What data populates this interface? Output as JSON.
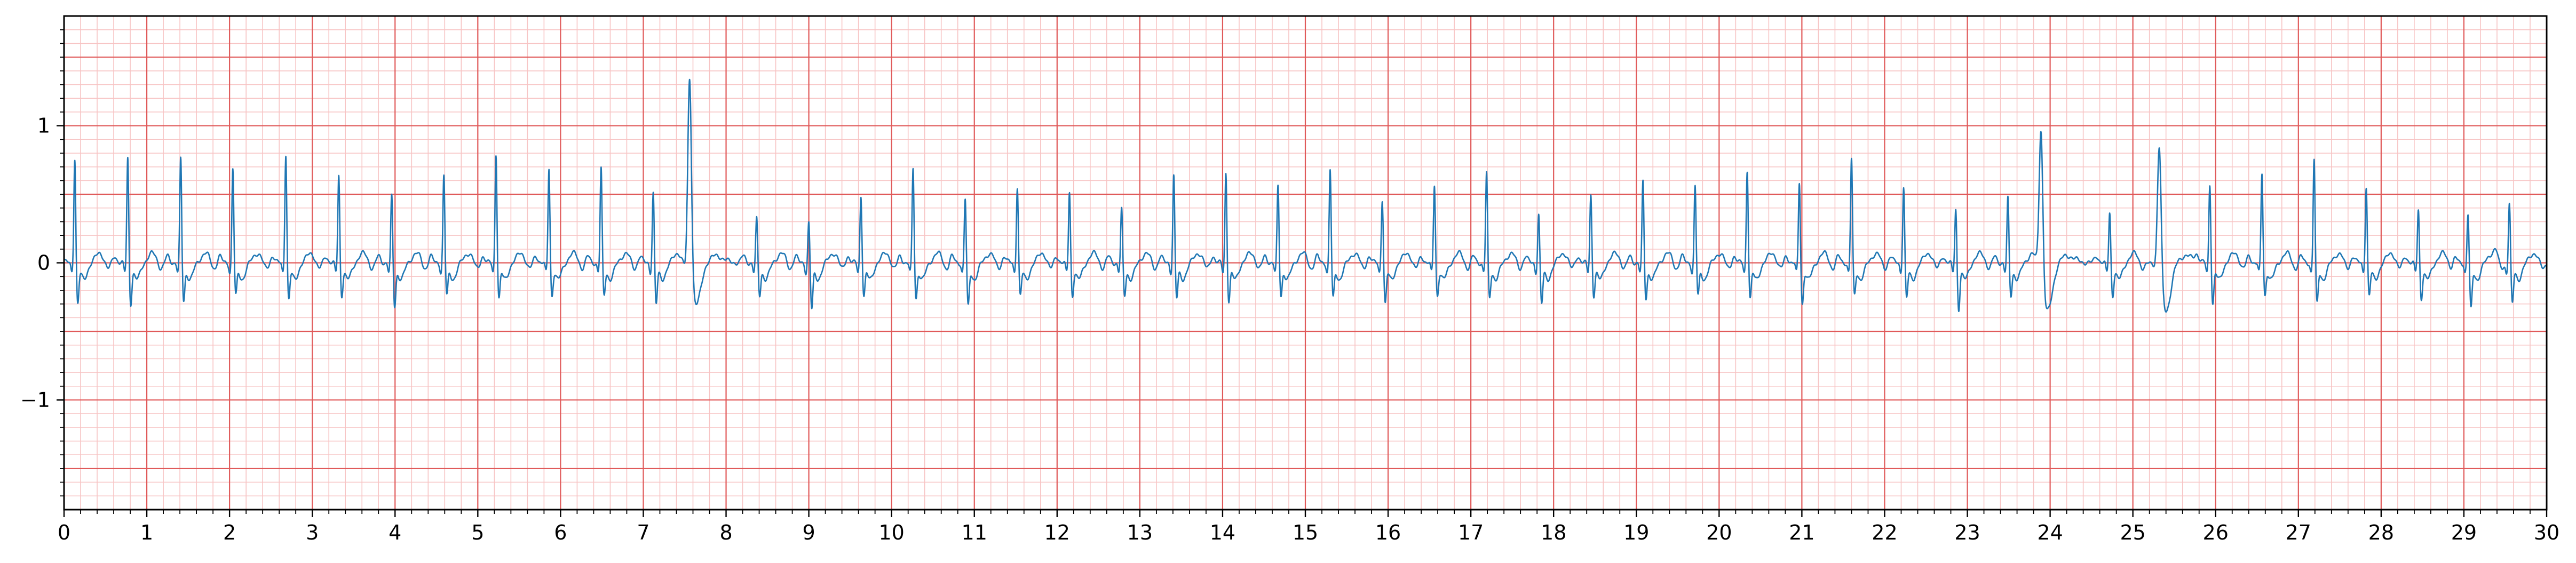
{
  "chart_data": {
    "type": "line",
    "title": "",
    "xlabel": "",
    "ylabel": "",
    "xlim": [
      0,
      30
    ],
    "ylim": [
      -1.8,
      1.8
    ],
    "x_ticks": [
      0,
      1,
      2,
      3,
      4,
      5,
      6,
      7,
      8,
      9,
      10,
      11,
      12,
      13,
      14,
      15,
      16,
      17,
      18,
      19,
      20,
      21,
      22,
      23,
      24,
      25,
      26,
      27,
      28,
      29,
      30
    ],
    "x_tick_labels": [
      "0",
      "1",
      "2",
      "3",
      "4",
      "5",
      "6",
      "7",
      "8",
      "9",
      "10",
      "11",
      "12",
      "13",
      "14",
      "15",
      "16",
      "17",
      "18",
      "19",
      "20",
      "21",
      "22",
      "23",
      "24",
      "25",
      "26",
      "27",
      "28",
      "29",
      "30"
    ],
    "y_ticks": [
      -1,
      0,
      1
    ],
    "y_tick_labels": [
      "−1",
      "0",
      "1"
    ],
    "grid": {
      "major_x": 1.0,
      "major_y": 0.5,
      "minor_x": 0.2,
      "minor_y": 0.1,
      "major_color": "#e05a5a",
      "minor_color": "#f7c4c4"
    },
    "series_color": "#1f77b4",
    "series": [
      {
        "beats": [
          {
            "t": 0.13,
            "r": 0.78,
            "s": -0.28
          },
          {
            "t": 0.77,
            "r": 0.78,
            "s": -0.28
          },
          {
            "t": 1.41,
            "r": 0.77,
            "s": -0.26
          },
          {
            "t": 2.04,
            "r": 0.7,
            "s": -0.22
          },
          {
            "t": 2.68,
            "r": 0.81,
            "s": -0.25
          },
          {
            "t": 3.32,
            "r": 0.65,
            "s": -0.22
          },
          {
            "t": 3.96,
            "r": 0.5,
            "s": -0.3
          },
          {
            "t": 4.59,
            "r": 0.65,
            "s": -0.22
          },
          {
            "t": 5.22,
            "r": 0.81,
            "s": -0.24
          },
          {
            "t": 5.86,
            "r": 0.7,
            "s": -0.22
          },
          {
            "t": 6.49,
            "r": 0.7,
            "s": -0.22
          },
          {
            "t": 7.12,
            "r": 0.53,
            "s": -0.28
          },
          {
            "t": 7.56,
            "r": 1.48,
            "s": -0.3,
            "pvc": true
          },
          {
            "t": 8.37,
            "r": 0.33,
            "s": -0.22
          },
          {
            "t": 9.0,
            "r": 0.31,
            "s": -0.32
          },
          {
            "t": 9.63,
            "r": 0.5,
            "s": -0.22
          },
          {
            "t": 10.26,
            "r": 0.7,
            "s": -0.24
          },
          {
            "t": 10.89,
            "r": 0.48,
            "s": -0.3
          },
          {
            "t": 11.52,
            "r": 0.57,
            "s": -0.22
          },
          {
            "t": 12.15,
            "r": 0.53,
            "s": -0.22
          },
          {
            "t": 12.78,
            "r": 0.4,
            "s": -0.22
          },
          {
            "t": 13.41,
            "r": 0.65,
            "s": -0.24
          },
          {
            "t": 14.04,
            "r": 0.67,
            "s": -0.26
          },
          {
            "t": 14.67,
            "r": 0.57,
            "s": -0.22
          },
          {
            "t": 15.3,
            "r": 0.69,
            "s": -0.24
          },
          {
            "t": 15.93,
            "r": 0.48,
            "s": -0.28
          },
          {
            "t": 16.56,
            "r": 0.58,
            "s": -0.22
          },
          {
            "t": 17.19,
            "r": 0.67,
            "s": -0.24
          },
          {
            "t": 17.82,
            "r": 0.37,
            "s": -0.28
          },
          {
            "t": 18.45,
            "r": 0.51,
            "s": -0.22
          },
          {
            "t": 19.08,
            "r": 0.6,
            "s": -0.24
          },
          {
            "t": 19.71,
            "r": 0.57,
            "s": -0.22
          },
          {
            "t": 20.34,
            "r": 0.69,
            "s": -0.24
          },
          {
            "t": 20.97,
            "r": 0.6,
            "s": -0.28
          },
          {
            "t": 21.6,
            "r": 0.77,
            "s": -0.22
          },
          {
            "t": 22.23,
            "r": 0.57,
            "s": -0.24
          },
          {
            "t": 22.86,
            "r": 0.41,
            "s": -0.32
          },
          {
            "t": 23.49,
            "r": 0.48,
            "s": -0.22
          },
          {
            "t": 23.89,
            "r": 1.15,
            "s": -0.35,
            "pvc": true
          },
          {
            "t": 24.72,
            "r": 0.38,
            "s": -0.22
          },
          {
            "t": 25.32,
            "r": 0.98,
            "s": -0.35,
            "pvc": true
          },
          {
            "t": 25.93,
            "r": 0.59,
            "s": -0.28
          },
          {
            "t": 26.56,
            "r": 0.66,
            "s": -0.22
          },
          {
            "t": 27.19,
            "r": 0.77,
            "s": -0.28
          },
          {
            "t": 27.82,
            "r": 0.57,
            "s": -0.22
          },
          {
            "t": 28.45,
            "r": 0.4,
            "s": -0.24
          },
          {
            "t": 29.05,
            "r": 0.37,
            "s": -0.32
          },
          {
            "t": 29.55,
            "r": 0.45,
            "s": -0.28
          }
        ]
      }
    ]
  }
}
